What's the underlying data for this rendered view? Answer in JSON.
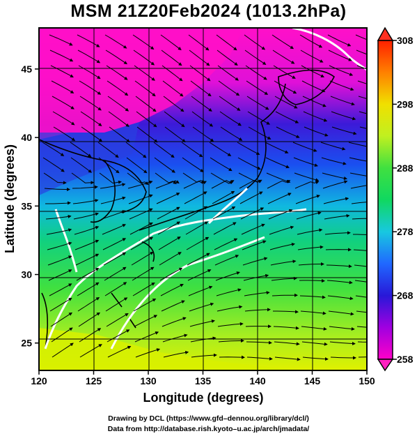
{
  "title": "MSM 21Z20Feb2024 (1013.2hPa)",
  "map": {
    "lon_range": [
      120,
      150
    ],
    "lat_range": [
      23,
      48
    ],
    "x_ticks": [
      "120",
      "125",
      "130",
      "135",
      "140",
      "145",
      "150"
    ],
    "y_ticks": [
      "25",
      "30",
      "35",
      "40",
      "45"
    ],
    "xlabel": "Longitude (degrees)",
    "ylabel": "Latitude  (degrees)"
  },
  "colorbar": {
    "min": 258,
    "max": 308,
    "tick_labels": [
      "308",
      "298",
      "288",
      "278",
      "268",
      "258"
    ],
    "colors": [
      "#ff00c8",
      "#b000e0",
      "#3a10d8",
      "#2060ff",
      "#18c8e0",
      "#10d860",
      "#40e040",
      "#b8f020",
      "#e8f000",
      "#ffc000",
      "#ff7000",
      "#ff2000"
    ]
  },
  "credits": {
    "line1": "Drawing by DCL (https://www.gfd–dennou.org/library/dcl/)",
    "line2": "Data from http://database.rish.kyoto–u.ac.jp/arch/jmadata/"
  }
}
